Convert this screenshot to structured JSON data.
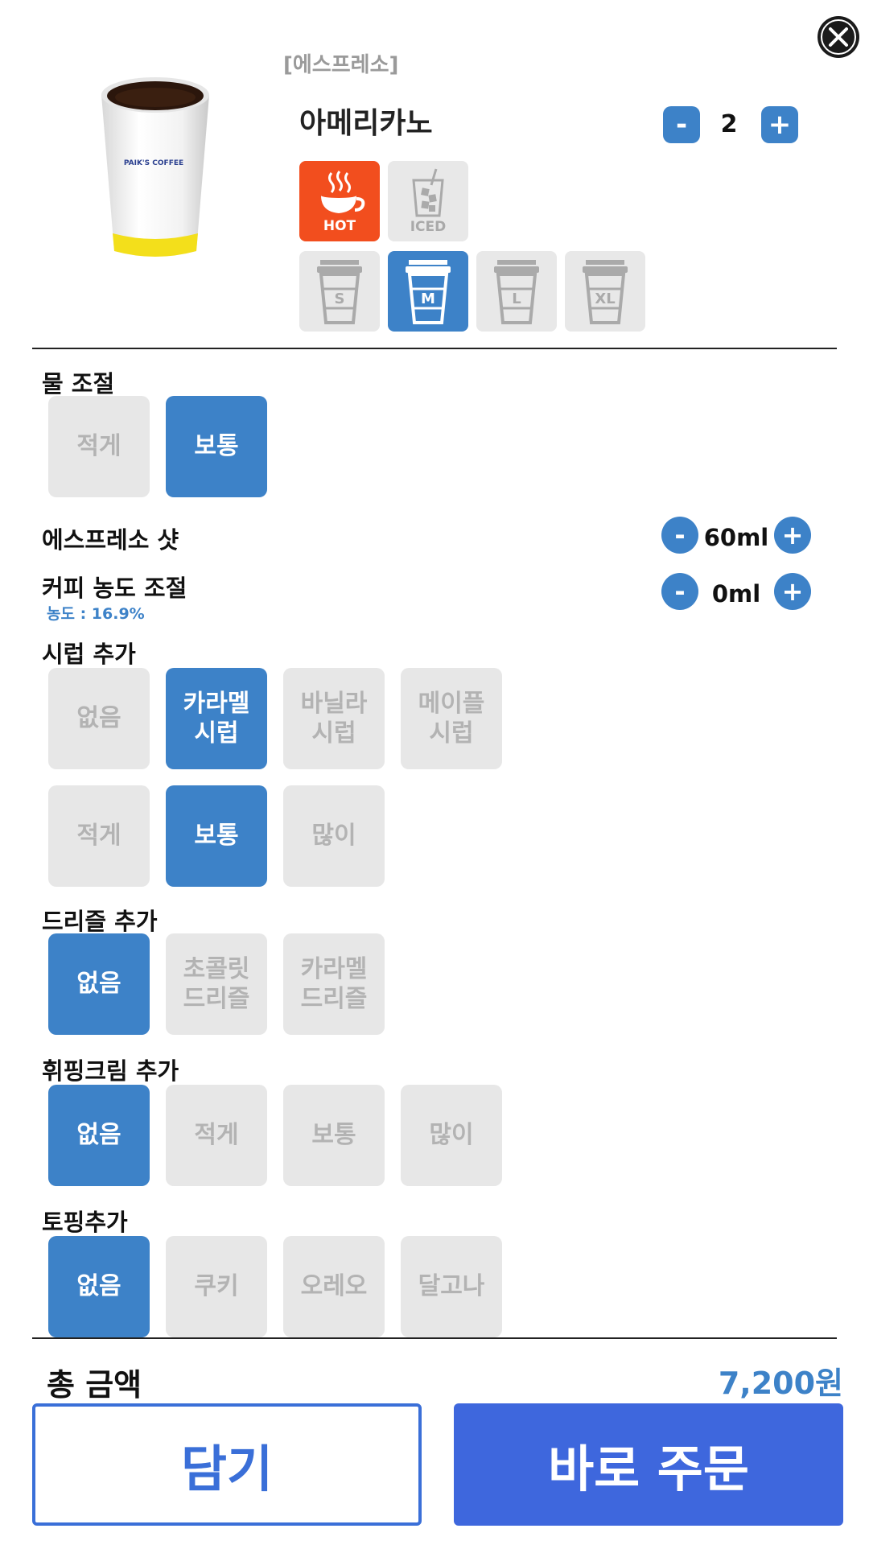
{
  "header": {
    "category": "[에스프레소]",
    "product_name": "아메리카노",
    "quantity": "2",
    "minus": "-",
    "plus": "+"
  },
  "product_image": {
    "brand": "PAIK'S COFFEE"
  },
  "temperature": [
    {
      "label": "HOT",
      "icon": "hot-cup-icon",
      "selected": true
    },
    {
      "label": "ICED",
      "icon": "iced-glass-icon",
      "selected": false
    }
  ],
  "sizes": [
    {
      "label": "S",
      "selected": false
    },
    {
      "label": "M",
      "selected": true
    },
    {
      "label": "L",
      "selected": false
    },
    {
      "label": "XL",
      "selected": false
    }
  ],
  "water": {
    "title": "물 조절",
    "options": [
      "적게",
      "보통"
    ],
    "selected": 1
  },
  "espresso_shot": {
    "title": "에스프레소 샷",
    "value": "60ml",
    "minus": "-",
    "plus": "+"
  },
  "coffee_density": {
    "title": "커피 농도 조절",
    "value": "0ml",
    "note": "농도 : 16.9%",
    "minus": "-",
    "plus": "+"
  },
  "syrup": {
    "title": "시럽 추가",
    "options": [
      "없음",
      "카라멜\n시럽",
      "바닐라\n시럽",
      "메이플\n시럽"
    ],
    "selected": 1,
    "amounts": [
      "적게",
      "보통",
      "많이"
    ],
    "amount_selected": 1
  },
  "drizzle": {
    "title": "드리즐 추가",
    "options": [
      "없음",
      "초콜릿\n드리즐",
      "카라멜\n드리즐"
    ],
    "selected": 0
  },
  "whipping": {
    "title": "휘핑크림 추가",
    "options": [
      "없음",
      "적게",
      "보통",
      "많이"
    ],
    "selected": 0
  },
  "topping": {
    "title": "토핑추가",
    "options": [
      "없음",
      "쿠키",
      "오레오",
      "달고나"
    ],
    "selected": 0
  },
  "footer": {
    "total_label": "총 금액",
    "total_value": "7,200원",
    "cart_label": "담기",
    "order_label": "바로 주문"
  },
  "colors": {
    "accent_blue": "#3d82c8",
    "hot_orange": "#f24e1e",
    "order_blue": "#3e67dd"
  }
}
